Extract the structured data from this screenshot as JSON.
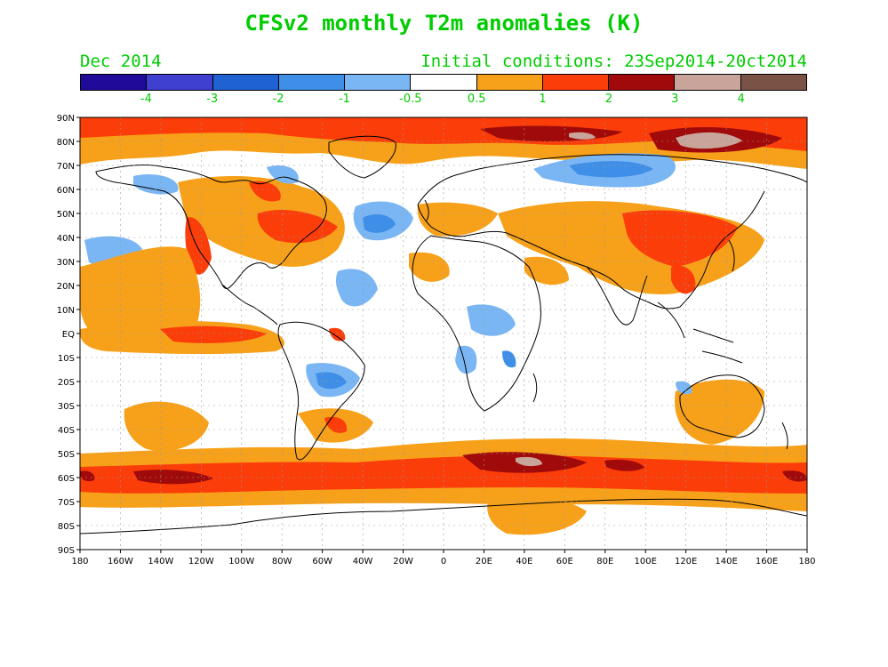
{
  "title": "CFSv2 monthly T2m anomalies (K)",
  "subtitle_left": "Dec 2014",
  "subtitle_right": "Initial conditions: 23Sep2014-20ct2014",
  "colorbar": {
    "colors": [
      "#1f0a99",
      "#3f3fd0",
      "#1f62d2",
      "#3f8fe8",
      "#7ab6f4",
      "#ffffff",
      "#f7a11a",
      "#fb3d0a",
      "#a00a0a",
      "#c9a49a",
      "#7a5246"
    ],
    "labels": [
      "-4",
      "-3",
      "-2",
      "-1",
      "-0.5",
      "0.5",
      "1",
      "2",
      "3",
      "4"
    ]
  },
  "axes": {
    "lat_labels": [
      "90N",
      "80N",
      "70N",
      "60N",
      "50N",
      "40N",
      "30N",
      "20N",
      "10N",
      "EQ",
      "10S",
      "20S",
      "30S",
      "40S",
      "50S",
      "60S",
      "70S",
      "80S",
      "90S"
    ],
    "lon_labels": [
      "180",
      "160W",
      "140W",
      "120W",
      "100W",
      "80W",
      "60W",
      "40W",
      "20W",
      "0",
      "20E",
      "40E",
      "60E",
      "80E",
      "100E",
      "120E",
      "140E",
      "160E",
      "180"
    ]
  }
}
